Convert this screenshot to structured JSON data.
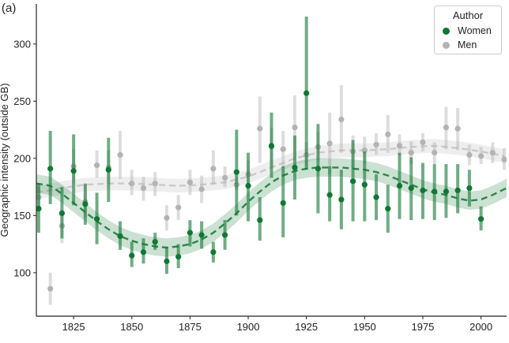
{
  "panel_label": "(a)",
  "chart_data": {
    "type": "scatter",
    "title": "",
    "xlabel": "",
    "ylabel": "Geographic intensity (outside GB)",
    "xlim": [
      1809,
      2011
    ],
    "ylim": [
      62,
      335
    ],
    "xticks": [
      1825,
      1850,
      1875,
      1900,
      1925,
      1950,
      1975,
      2000
    ],
    "yticks": [
      100,
      150,
      200,
      250,
      300
    ],
    "grid": false,
    "legend": {
      "title": "Author",
      "position": "top-right"
    },
    "series": [
      {
        "name": "Men",
        "color": "#b3b3b3",
        "points": [
          [
            1810,
            166,
            157,
            175
          ],
          [
            1815,
            86,
            72,
            100
          ],
          [
            1820,
            141,
            126,
            155
          ],
          [
            1825,
            193,
            178,
            208
          ],
          [
            1830,
            162,
            148,
            177
          ],
          [
            1835,
            194,
            183,
            207
          ],
          [
            1840,
            192,
            178,
            207
          ],
          [
            1845,
            203,
            182,
            224
          ],
          [
            1850,
            178,
            168,
            190
          ],
          [
            1855,
            174,
            163,
            184
          ],
          [
            1860,
            178,
            167,
            188
          ],
          [
            1865,
            148,
            137,
            159
          ],
          [
            1870,
            157,
            146,
            168
          ],
          [
            1875,
            179,
            168,
            190
          ],
          [
            1880,
            173,
            161,
            185
          ],
          [
            1885,
            191,
            177,
            207
          ],
          [
            1890,
            183,
            175,
            193
          ],
          [
            1895,
            177,
            172,
            184
          ],
          [
            1900,
            186,
            175,
            198
          ],
          [
            1905,
            226,
            196,
            254
          ],
          [
            1910,
            210,
            192,
            227
          ],
          [
            1915,
            208,
            192,
            224
          ],
          [
            1920,
            227,
            198,
            255
          ],
          [
            1925,
            203,
            193,
            214
          ],
          [
            1930,
            210,
            198,
            223
          ],
          [
            1935,
            213,
            186,
            240
          ],
          [
            1940,
            234,
            205,
            264
          ],
          [
            1945,
            206,
            191,
            220
          ],
          [
            1950,
            207,
            195,
            219
          ],
          [
            1955,
            212,
            203,
            222
          ],
          [
            1960,
            221,
            205,
            238
          ],
          [
            1965,
            211,
            202,
            221
          ],
          [
            1970,
            205,
            195,
            215
          ],
          [
            1975,
            214,
            206,
            222
          ],
          [
            1980,
            205,
            195,
            214
          ],
          [
            1985,
            227,
            208,
            245
          ],
          [
            1990,
            226,
            207,
            244
          ],
          [
            1995,
            203,
            194,
            212
          ],
          [
            2000,
            202,
            195,
            210
          ],
          [
            2005,
            205,
            196,
            214
          ],
          [
            2010,
            199,
            190,
            209
          ]
        ],
        "trend": [
          [
            1809,
            170
          ],
          [
            1820,
            174
          ],
          [
            1830,
            177
          ],
          [
            1840,
            178
          ],
          [
            1850,
            178
          ],
          [
            1860,
            177
          ],
          [
            1870,
            176
          ],
          [
            1880,
            177
          ],
          [
            1890,
            179
          ],
          [
            1900,
            184
          ],
          [
            1910,
            192
          ],
          [
            1920,
            200
          ],
          [
            1930,
            205
          ],
          [
            1940,
            207
          ],
          [
            1950,
            207
          ],
          [
            1960,
            208
          ],
          [
            1970,
            210
          ],
          [
            1980,
            211
          ],
          [
            1990,
            209
          ],
          [
            2000,
            206
          ],
          [
            2010,
            202
          ]
        ],
        "band_halfwidth": 6
      },
      {
        "name": "Women",
        "color": "#117733",
        "points": [
          [
            1810,
            156,
            135,
            178
          ],
          [
            1815,
            191,
            160,
            224
          ],
          [
            1820,
            152,
            130,
            175
          ],
          [
            1825,
            189,
            159,
            221
          ],
          [
            1830,
            160,
            142,
            178
          ],
          [
            1835,
            147,
            125,
            170
          ],
          [
            1840,
            190,
            162,
            218
          ],
          [
            1845,
            132,
            120,
            145
          ],
          [
            1850,
            115,
            105,
            127
          ],
          [
            1855,
            118,
            108,
            130
          ],
          [
            1860,
            127,
            120,
            135
          ],
          [
            1865,
            110,
            99,
            122
          ],
          [
            1870,
            114,
            104,
            125
          ],
          [
            1875,
            135,
            123,
            146
          ],
          [
            1880,
            133,
            121,
            145
          ],
          [
            1885,
            118,
            109,
            127
          ],
          [
            1890,
            133,
            120,
            146
          ],
          [
            1895,
            188,
            150,
            225
          ],
          [
            1900,
            176,
            145,
            205
          ],
          [
            1905,
            146,
            128,
            166
          ],
          [
            1910,
            211,
            183,
            240
          ],
          [
            1915,
            161,
            131,
            193
          ],
          [
            1920,
            192,
            164,
            220
          ],
          [
            1925,
            257,
            190,
            324
          ],
          [
            1930,
            191,
            152,
            230
          ],
          [
            1935,
            168,
            145,
            193
          ],
          [
            1940,
            164,
            138,
            190
          ],
          [
            1945,
            180,
            145,
            216
          ],
          [
            1950,
            177,
            145,
            206
          ],
          [
            1955,
            166,
            146,
            186
          ],
          [
            1960,
            156,
            135,
            177
          ],
          [
            1965,
            176,
            147,
            205
          ],
          [
            1970,
            174,
            146,
            201
          ],
          [
            1975,
            172,
            147,
            196
          ],
          [
            1980,
            171,
            146,
            195
          ],
          [
            1985,
            171,
            148,
            195
          ],
          [
            1990,
            172,
            152,
            195
          ],
          [
            1995,
            174,
            158,
            190
          ],
          [
            2000,
            147,
            137,
            158
          ]
        ],
        "trend": [
          [
            1809,
            178
          ],
          [
            1815,
            176
          ],
          [
            1820,
            169
          ],
          [
            1825,
            161
          ],
          [
            1830,
            153
          ],
          [
            1835,
            145
          ],
          [
            1840,
            138
          ],
          [
            1845,
            132
          ],
          [
            1850,
            128
          ],
          [
            1855,
            125
          ],
          [
            1860,
            123
          ],
          [
            1865,
            122
          ],
          [
            1870,
            123
          ],
          [
            1875,
            125
          ],
          [
            1880,
            129
          ],
          [
            1885,
            135
          ],
          [
            1890,
            143
          ],
          [
            1895,
            152
          ],
          [
            1900,
            162
          ],
          [
            1905,
            171
          ],
          [
            1910,
            179
          ],
          [
            1915,
            185
          ],
          [
            1920,
            189
          ],
          [
            1925,
            191
          ],
          [
            1930,
            192
          ],
          [
            1935,
            192
          ],
          [
            1940,
            192
          ],
          [
            1945,
            191
          ],
          [
            1950,
            190
          ],
          [
            1955,
            188
          ],
          [
            1960,
            185
          ],
          [
            1965,
            181
          ],
          [
            1970,
            177
          ],
          [
            1975,
            173
          ],
          [
            1980,
            170
          ],
          [
            1985,
            168
          ],
          [
            1990,
            165
          ],
          [
            1995,
            163
          ],
          [
            2000,
            164
          ],
          [
            2005,
            168
          ],
          [
            2011,
            174
          ]
        ],
        "band_halfwidth": 8
      }
    ]
  }
}
